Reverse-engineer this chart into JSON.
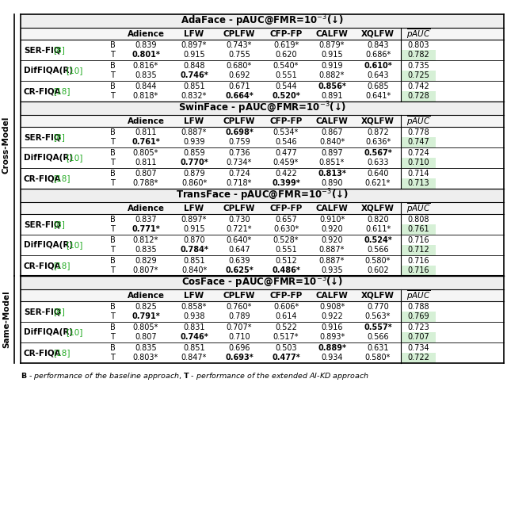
{
  "sections": [
    {
      "title": "AdaFace - pAUC@FMR=10",
      "title_exp": "-3",
      "title_arrow": "(↓)",
      "rows": [
        {
          "method": "SER-FIQ",
          "ref": "[8]",
          "B": [
            "0.839",
            "0.897*",
            "0.743*",
            "0.619*",
            "0.879*",
            "0.843",
            "0.803"
          ],
          "T": [
            "0.801*",
            "0.915",
            "0.755",
            "0.620",
            "0.915",
            "0.686*",
            "0.782"
          ],
          "bold_B": [],
          "bold_T": [
            0
          ]
        },
        {
          "method": "DifFIQA(R)",
          "ref": "[10]",
          "B": [
            "0.816*",
            "0.848",
            "0.680*",
            "0.540*",
            "0.919",
            "0.610*",
            "0.735"
          ],
          "T": [
            "0.835",
            "0.746*",
            "0.692",
            "0.551",
            "0.882*",
            "0.643",
            "0.725"
          ],
          "bold_B": [
            5
          ],
          "bold_T": [
            1
          ]
        },
        {
          "method": "CR-FIQA",
          "ref": "[18]",
          "B": [
            "0.844",
            "0.851",
            "0.671",
            "0.544",
            "0.856*",
            "0.685",
            "0.742"
          ],
          "T": [
            "0.818*",
            "0.832*",
            "0.664*",
            "0.520*",
            "0.891",
            "0.641*",
            "0.728"
          ],
          "bold_B": [
            4
          ],
          "bold_T": [
            2,
            3
          ]
        }
      ]
    },
    {
      "title": "SwinFace - pAUC@FMR=10",
      "title_exp": "-3",
      "title_arrow": "(↓)",
      "rows": [
        {
          "method": "SER-FIQ",
          "ref": "[8]",
          "B": [
            "0.811",
            "0.887*",
            "0.698*",
            "0.534*",
            "0.867",
            "0.872",
            "0.778"
          ],
          "T": [
            "0.761*",
            "0.939",
            "0.759",
            "0.546",
            "0.840*",
            "0.636*",
            "0.747"
          ],
          "bold_B": [
            2
          ],
          "bold_T": [
            0
          ]
        },
        {
          "method": "DifFIQA(R)",
          "ref": "[10]",
          "B": [
            "0.805*",
            "0.859",
            "0.736",
            "0.477",
            "0.897",
            "0.567*",
            "0.724"
          ],
          "T": [
            "0.811",
            "0.770*",
            "0.734*",
            "0.459*",
            "0.851*",
            "0.633",
            "0.710"
          ],
          "bold_B": [
            5
          ],
          "bold_T": [
            1
          ]
        },
        {
          "method": "CR-FIQA",
          "ref": "[18]",
          "B": [
            "0.807",
            "0.879",
            "0.724",
            "0.422",
            "0.813*",
            "0.640",
            "0.714"
          ],
          "T": [
            "0.788*",
            "0.860*",
            "0.718*",
            "0.399*",
            "0.890",
            "0.621*",
            "0.713"
          ],
          "bold_B": [
            4
          ],
          "bold_T": [
            3
          ]
        }
      ]
    },
    {
      "title": "TransFace - pAUC@FMR=10",
      "title_exp": "-3",
      "title_arrow": "(↓)",
      "rows": [
        {
          "method": "SER-FIQ",
          "ref": "[8]",
          "B": [
            "0.837",
            "0.897*",
            "0.730",
            "0.657",
            "0.910*",
            "0.820",
            "0.808"
          ],
          "T": [
            "0.771*",
            "0.915",
            "0.721*",
            "0.630*",
            "0.920",
            "0.611*",
            "0.761"
          ],
          "bold_B": [],
          "bold_T": [
            0
          ]
        },
        {
          "method": "DifFIQA(R)",
          "ref": "[10]",
          "B": [
            "0.812*",
            "0.870",
            "0.640*",
            "0.528*",
            "0.920",
            "0.524*",
            "0.716"
          ],
          "T": [
            "0.835",
            "0.784*",
            "0.647",
            "0.551",
            "0.887*",
            "0.566",
            "0.712"
          ],
          "bold_B": [
            5
          ],
          "bold_T": [
            1
          ]
        },
        {
          "method": "CR-FIQA",
          "ref": "[18]",
          "B": [
            "0.829",
            "0.851",
            "0.639",
            "0.512",
            "0.887*",
            "0.580*",
            "0.716"
          ],
          "T": [
            "0.807*",
            "0.840*",
            "0.625*",
            "0.486*",
            "0.935",
            "0.602",
            "0.716"
          ],
          "bold_B": [],
          "bold_T": [
            2,
            3
          ]
        }
      ]
    },
    {
      "title": "CosFace - pAUC@FMR=10",
      "title_exp": "-3",
      "title_arrow": "(↓)",
      "rows": [
        {
          "method": "SER-FIQ",
          "ref": "[8]",
          "B": [
            "0.825",
            "0.858*",
            "0.760*",
            "0.606*",
            "0.908*",
            "0.770",
            "0.788"
          ],
          "T": [
            "0.791*",
            "0.938",
            "0.789",
            "0.614",
            "0.922",
            "0.563*",
            "0.769"
          ],
          "bold_B": [],
          "bold_T": [
            0
          ]
        },
        {
          "method": "DifFIQA(R)",
          "ref": "[10]",
          "B": [
            "0.805*",
            "0.831",
            "0.707*",
            "0.522",
            "0.916",
            "0.557*",
            "0.723"
          ],
          "T": [
            "0.807",
            "0.746*",
            "0.710",
            "0.517*",
            "0.893*",
            "0.566",
            "0.707"
          ],
          "bold_B": [
            5
          ],
          "bold_T": [
            1
          ]
        },
        {
          "method": "CR-FIQA",
          "ref": "[18]",
          "B": [
            "0.835",
            "0.851",
            "0.696",
            "0.503",
            "0.889*",
            "0.631",
            "0.734"
          ],
          "T": [
            "0.803*",
            "0.847*",
            "0.693*",
            "0.477*",
            "0.934",
            "0.580*",
            "0.722"
          ],
          "bold_B": [
            4
          ],
          "bold_T": [
            2,
            3
          ]
        }
      ]
    }
  ],
  "col_headers": [
    "Adience",
    "LFW",
    "CPLFW",
    "CFP-FP",
    "CALFW",
    "XQLFW"
  ],
  "cross_model_sections": [
    0,
    1,
    2
  ],
  "same_model_sections": [
    3
  ],
  "side_label_cross": "Cross-Model",
  "side_label_same": "Same-Model",
  "green_highlight": "#d6f0d6",
  "ref_color": "#22aa22",
  "section_title_bg": "#eeeeee",
  "header_bg": "#f5f5f5",
  "outer_bg_cross": "#fdf6f0",
  "outer_bg_same": "#fdf6f0"
}
